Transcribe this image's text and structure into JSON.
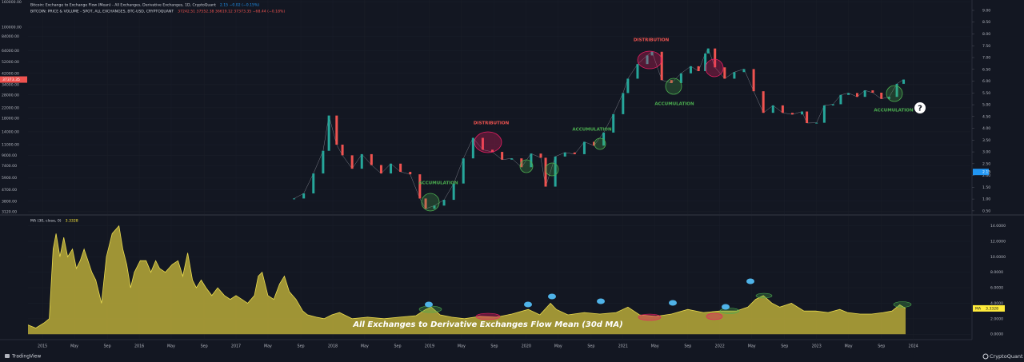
{
  "chart_data": [
    {
      "type": "candles",
      "legend": [
        {
          "name": "Bitcoin: Exchange to Exchange Flow (Mean) - All Exchanges, Derivative Exchanges, 1D, CryptoQuant",
          "readout": "2.15 −0.02 (−0.15%)",
          "color": "#2196f3"
        },
        {
          "name": "BITCOIN: PRICE & VOLUME - SPOT, ALL EXCHANGES, BTC-USD, CRYPTOQUANT",
          "readout": "37242.51 37552.38 36619.12 37373.35 −68.44 (−0.18%)",
          "color": "#ef5350"
        }
      ],
      "x": [
        2017.6,
        2017.7,
        2017.8,
        2017.9,
        2017.96,
        2018.04,
        2018.1,
        2018.2,
        2018.3,
        2018.4,
        2018.5,
        2018.6,
        2018.7,
        2018.8,
        2018.9,
        2018.96,
        2019.05,
        2019.15,
        2019.25,
        2019.35,
        2019.45,
        2019.55,
        2019.65,
        2019.75,
        2019.85,
        2019.95,
        2020.05,
        2020.15,
        2020.2,
        2020.3,
        2020.4,
        2020.5,
        2020.6,
        2020.7,
        2020.8,
        2020.9,
        2021.0,
        2021.05,
        2021.15,
        2021.25,
        2021.3,
        2021.4,
        2021.5,
        2021.6,
        2021.7,
        2021.78,
        2021.85,
        2021.88,
        2021.95,
        2022.05,
        2022.15,
        2022.25,
        2022.35,
        2022.45,
        2022.55,
        2022.65,
        2022.75,
        2022.85,
        2022.9,
        2023.0,
        2023.08,
        2023.17,
        2023.25,
        2023.33,
        2023.42,
        2023.5,
        2023.58,
        2023.67,
        2023.75,
        2023.83,
        2023.9
      ],
      "series": [
        {
          "up_color": "#26a69a",
          "down_color": "#ef5350",
          "values": [
            4000,
            4400,
            6400,
            9800,
            19000,
            11000,
            9000,
            7000,
            9200,
            7500,
            6400,
            7700,
            6600,
            6300,
            4000,
            3300,
            3500,
            3900,
            5300,
            8500,
            12500,
            10000,
            9600,
            8300,
            8500,
            7200,
            9300,
            8600,
            5000,
            8800,
            9500,
            9200,
            11600,
            10800,
            13800,
            19500,
            29000,
            38000,
            50000,
            58800,
            63000,
            37000,
            35000,
            42000,
            48000,
            43800,
            61000,
            67000,
            47000,
            38000,
            43000,
            45500,
            30000,
            20000,
            23000,
            20000,
            19400,
            20500,
            16500,
            16600,
            23000,
            23500,
            28000,
            29000,
            27000,
            30500,
            29200,
            26000,
            27000,
            34500,
            37373.35
          ]
        }
      ],
      "xlim": [
        2014.85,
        2024.59
      ],
      "ylim": [
        2980,
        166600
      ],
      "log_scale": true,
      "yticks": [
        {
          "value": 160000,
          "label": "160000.00"
        },
        {
          "value": 100000,
          "label": "100000.00"
        },
        {
          "value": 84000,
          "label": "84000.00"
        },
        {
          "value": 64000,
          "label": "64000.00"
        },
        {
          "value": 52000,
          "label": "52000.00"
        },
        {
          "value": 42000,
          "label": "42000.00"
        },
        {
          "value": 34000,
          "label": "34000.00"
        },
        {
          "value": 28000,
          "label": "28000.00"
        },
        {
          "value": 22000,
          "label": "22000.00"
        },
        {
          "value": 18000,
          "label": "18000.00"
        },
        {
          "value": 14000,
          "label": "14000.00"
        },
        {
          "value": 11000,
          "label": "11000.00"
        },
        {
          "value": 9000,
          "label": "9000.00"
        },
        {
          "value": 7400,
          "label": "7400.00"
        },
        {
          "value": 5900,
          "label": "5900.00"
        },
        {
          "value": 4700,
          "label": "4700.00"
        },
        {
          "value": 3800,
          "label": "3800.00"
        },
        {
          "value": 3120,
          "label": "3120.00"
        }
      ],
      "y2lim": [
        0.36,
        9.44
      ],
      "y2ticks": [
        {
          "value": 9,
          "label": "9.00"
        },
        {
          "value": 8.5,
          "label": "8.50"
        },
        {
          "value": 8,
          "label": "8.00"
        },
        {
          "value": 7.5,
          "label": "7.50"
        },
        {
          "value": 7,
          "label": "7.00"
        },
        {
          "value": 6.5,
          "label": "6.50"
        },
        {
          "value": 6,
          "label": "6.00"
        },
        {
          "value": 5.5,
          "label": "5.50"
        },
        {
          "value": 5,
          "label": "5.00"
        },
        {
          "value": 4.5,
          "label": "4.50"
        },
        {
          "value": 4,
          "label": "4.00"
        },
        {
          "value": 3.5,
          "label": "3.50"
        },
        {
          "value": 3,
          "label": "3.00"
        },
        {
          "value": 2.5,
          "label": "2.50"
        },
        {
          "value": 2,
          "label": "2.00"
        },
        {
          "value": 1.5,
          "label": "1.50"
        },
        {
          "value": 1,
          "label": "1.00"
        },
        {
          "value": 0.5,
          "label": "0.50"
        }
      ],
      "price_badge": {
        "value": 37373.35,
        "label": "37373.35",
        "color": "#ef5350"
      },
      "y2_badge": {
        "value": 2.15,
        "label": "2.15",
        "color": "#2196f3"
      },
      "annotations": [
        {
          "text": "DISTRIBUTION",
          "color": "#ef5350"
        },
        {
          "text": "DISTRIBUTION",
          "color": "#ef5350"
        },
        {
          "text": "ACCUMULATION",
          "color": "#4caf50"
        },
        {
          "text": "ACCUMULATION",
          "color": "#4caf50"
        },
        {
          "text": "ACCUMULATION",
          "color": "#4caf50"
        },
        {
          "text": "ACCUMULATION",
          "color": "#4caf50"
        }
      ]
    },
    {
      "type": "area",
      "title": "All Exchanges to Derivative Exchanges Flow Mean (30d MA)",
      "legend": [
        {
          "name": "MA (30, close, 0)",
          "readout": "3.3328",
          "color": "#ffeb3b"
        }
      ],
      "x": [
        2014.85,
        2014.93,
        2015.02,
        2015.07,
        2015.11,
        2015.14,
        2015.18,
        2015.22,
        2015.26,
        2015.31,
        2015.35,
        2015.39,
        2015.43,
        2015.47,
        2015.51,
        2015.55,
        2015.61,
        2015.66,
        2015.72,
        2015.79,
        2015.83,
        2015.87,
        2015.91,
        2015.95,
        2016.01,
        2016.07,
        2016.12,
        2016.17,
        2016.21,
        2016.27,
        2016.34,
        2016.4,
        2016.45,
        2016.5,
        2016.55,
        2016.59,
        2016.64,
        2016.69,
        2016.75,
        2016.81,
        2016.88,
        2016.94,
        2017.0,
        2017.06,
        2017.12,
        2017.19,
        2017.23,
        2017.27,
        2017.33,
        2017.39,
        2017.45,
        2017.5,
        2017.55,
        2017.62,
        2017.69,
        2017.74,
        2017.83,
        2017.91,
        2017.99,
        2018.07,
        2018.2,
        2018.36,
        2018.53,
        2018.69,
        2018.86,
        2018.96,
        2019.02,
        2019.11,
        2019.23,
        2019.36,
        2019.52,
        2019.69,
        2019.85,
        2020.02,
        2020.14,
        2020.25,
        2020.31,
        2020.43,
        2020.6,
        2020.76,
        2020.93,
        2021.05,
        2021.17,
        2021.34,
        2021.5,
        2021.67,
        2021.83,
        2022.0,
        2022.17,
        2022.29,
        2022.37,
        2022.45,
        2022.54,
        2022.62,
        2022.74,
        2022.87,
        2022.99,
        2023.12,
        2023.24,
        2023.32,
        2023.45,
        2023.57,
        2023.69,
        2023.78,
        2023.86,
        2023.92
      ],
      "values": [
        1.2,
        0.8,
        1.5,
        2,
        11,
        13,
        10,
        12.5,
        10,
        11,
        8.5,
        9.5,
        11,
        9.5,
        8,
        7,
        4,
        10,
        13,
        14,
        11,
        9,
        6,
        8,
        9.5,
        9.5,
        8,
        9.5,
        8.5,
        8,
        9,
        9.5,
        7.5,
        10.5,
        7,
        6,
        7,
        6,
        5,
        6,
        5,
        4.5,
        5,
        4.5,
        4,
        5,
        7.5,
        8,
        5,
        4.5,
        6.5,
        7.5,
        5.5,
        4.5,
        3,
        2.5,
        2.2,
        2,
        2.5,
        2.8,
        2,
        2.2,
        2,
        2.2,
        2.4,
        3.2,
        3.5,
        2.5,
        2.2,
        2,
        2.3,
        2.2,
        2.6,
        3.2,
        2.5,
        4,
        3.2,
        2.5,
        2.8,
        2.6,
        2.8,
        3.5,
        2.5,
        2.3,
        2.6,
        3.2,
        2.8,
        3,
        3,
        3.5,
        4.5,
        5,
        4,
        3.5,
        4,
        3,
        3,
        2.8,
        3.2,
        2.8,
        2.6,
        2.6,
        2.8,
        3,
        3.8,
        3.3328
      ],
      "color": "#b8aa38",
      "line_color": "#e8d94e",
      "xlim": [
        2014.85,
        2024.59
      ],
      "ylim": [
        -0.7,
        15.3
      ],
      "yticks": [
        {
          "value": 14,
          "label": "14.0000"
        },
        {
          "value": 12,
          "label": "12.0000"
        },
        {
          "value": 10,
          "label": "10.0000"
        },
        {
          "value": 8,
          "label": "8.0000"
        },
        {
          "value": 6,
          "label": "6.0000"
        },
        {
          "value": 4,
          "label": "4.0000"
        },
        {
          "value": 2,
          "label": "2.0000"
        },
        {
          "value": 0,
          "label": "0.0000"
        }
      ],
      "xticks": [
        2015,
        {
          "value": 2015.33,
          "label": "May"
        },
        {
          "value": 2015.67,
          "label": "Sep"
        },
        2016,
        {
          "value": 2016.33,
          "label": "May"
        },
        {
          "value": 2016.67,
          "label": "Sep"
        },
        2017,
        {
          "value": 2017.33,
          "label": "May"
        },
        {
          "value": 2017.67,
          "label": "Sep"
        },
        2018,
        {
          "value": 2018.33,
          "label": "May"
        },
        {
          "value": 2018.67,
          "label": "Sep"
        },
        2019,
        {
          "value": 2019.33,
          "label": "May"
        },
        {
          "value": 2019.67,
          "label": "Sep"
        },
        2020,
        {
          "value": 2020.33,
          "label": "May"
        },
        {
          "value": 2020.67,
          "label": "Sep"
        },
        2021,
        {
          "value": 2021.33,
          "label": "May"
        },
        {
          "value": 2021.67,
          "label": "Sep"
        },
        2022,
        {
          "value": 2022.33,
          "label": "May"
        },
        {
          "value": 2022.67,
          "label": "Sep"
        },
        2023,
        {
          "value": 2023.33,
          "label": "May"
        },
        {
          "value": 2023.67,
          "label": "Sep"
        },
        2024
      ],
      "badge": {
        "prefix": "MA",
        "value": 3.3328,
        "label": "3.3328",
        "color": "#ffeb3b"
      }
    }
  ],
  "overlay": {
    "question": "?"
  },
  "footer": {
    "left": "TradingView",
    "right": "CryptoQuant"
  }
}
